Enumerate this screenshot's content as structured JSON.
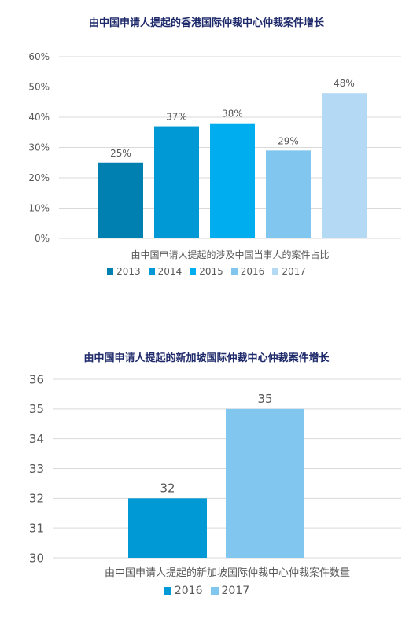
{
  "chart_data": [
    {
      "type": "bar",
      "title": "由中国申请人提起的香港国际仲裁中心仲裁案件增长",
      "xlabel": "由中国申请人提起的涉及中国当事人的案件占比",
      "ylabel": "",
      "categories": [
        "2013",
        "2014",
        "2015",
        "2016",
        "2017"
      ],
      "values": [
        25,
        37,
        38,
        29,
        48
      ],
      "value_labels": [
        "25%",
        "37%",
        "38%",
        "29%",
        "48%"
      ],
      "ylim": [
        0,
        60
      ],
      "yticks": [
        "0%",
        "10%",
        "20%",
        "30%",
        "40%",
        "50%",
        "60%"
      ],
      "colors": [
        "#0080b0",
        "#0099d6",
        "#00aeef",
        "#80c6ee",
        "#b4d9f4"
      ],
      "grid": true,
      "legend": "bottom"
    },
    {
      "type": "bar",
      "title": "由中国申请人提起的新加坡国际仲裁中心仲裁案件增长",
      "xlabel": "由中国申请人提起的新加坡国际仲裁中心仲裁案件数量",
      "ylabel": "",
      "categories": [
        "2016",
        "2017"
      ],
      "values": [
        32,
        35
      ],
      "value_labels": [
        "32",
        "35"
      ],
      "ylim": [
        30,
        36
      ],
      "yticks": [
        "30",
        "31",
        "32",
        "33",
        "34",
        "35",
        "36"
      ],
      "colors": [
        "#0099d6",
        "#80c6ee"
      ],
      "grid": true,
      "legend": "bottom"
    }
  ]
}
